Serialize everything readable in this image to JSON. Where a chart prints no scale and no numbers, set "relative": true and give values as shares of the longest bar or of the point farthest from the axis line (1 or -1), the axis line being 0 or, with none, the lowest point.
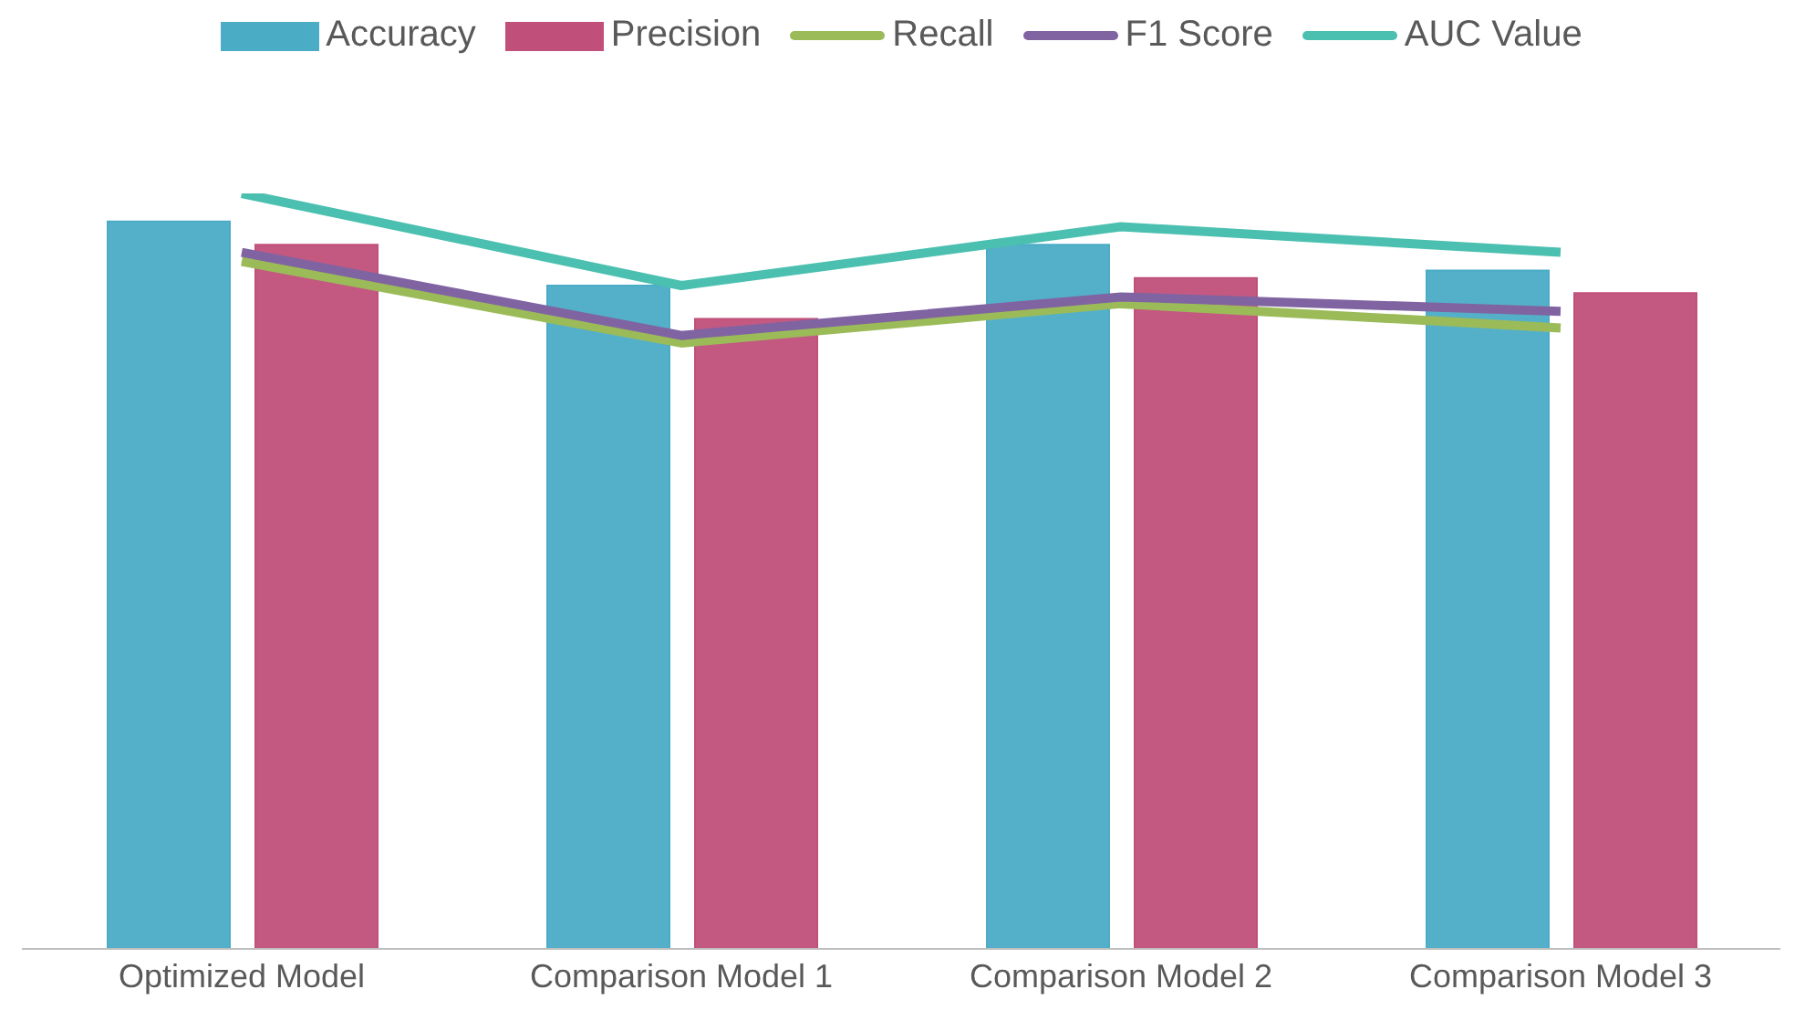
{
  "chart_data": {
    "type": "bar",
    "relative": true,
    "legend": "top",
    "grid": false,
    "categories": [
      "Optimized Model",
      "Comparison Model 1",
      "Comparison Model 2",
      "Comparison Model 3"
    ],
    "series": [
      {
        "name": "Accuracy",
        "color": "#4bacc6",
        "values": [
          0.963,
          0.878,
          0.932,
          0.898
        ]
      },
      {
        "name": "Precision",
        "color": "#c0507a",
        "values": [
          0.932,
          0.834,
          0.888,
          0.868
        ]
      },
      {
        "name": "Recall",
        "type": "line",
        "color": "#9bbb59",
        "values": [
          0.91,
          0.802,
          0.854,
          0.822
        ]
      },
      {
        "name": "F1 Score",
        "type": "line",
        "color": "#8064a2",
        "values": [
          0.922,
          0.812,
          0.863,
          0.844
        ]
      },
      {
        "name": "AUC Value",
        "type": "line",
        "color": "#4bc0b0",
        "values": [
          1,
          0.878,
          0.956,
          0.922
        ]
      }
    ]
  }
}
